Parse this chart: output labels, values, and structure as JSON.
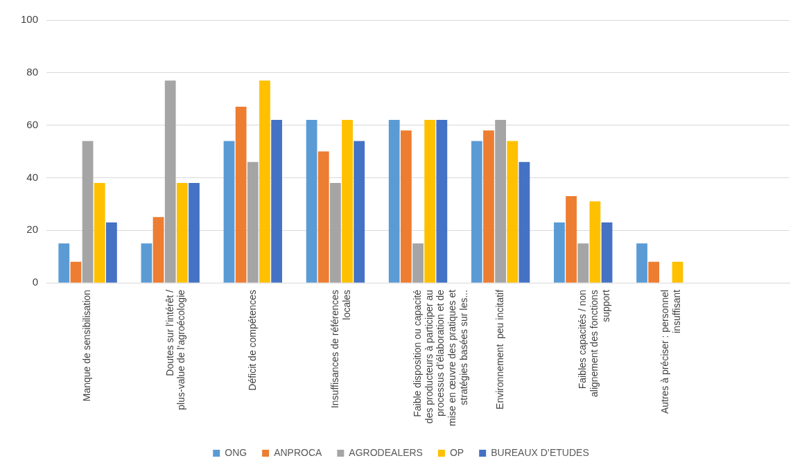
{
  "chart_data": {
    "type": "bar",
    "categories": [
      "Manque de sensibilisation",
      "Doutes sur l’intérêt / plus-value de l’agroécologie",
      "Déficit de compétences",
      "Insuffisances de références locales",
      "Faible disposition ou capacité des producteurs à participer au processus d’élaboration et de mise en œuvre des pratiques et stratégies basées sur les...",
      "Environnement  peu incitatif",
      "Faibles capacités / non alignement des fonctions support",
      "Autres à préciser : personnel insuffisant",
      null
    ],
    "series": [
      {
        "name": "ONG",
        "color": "#5b9bd5",
        "values": [
          15,
          15,
          54,
          62,
          62,
          54,
          23,
          15,
          null
        ]
      },
      {
        "name": "ANPROCA",
        "color": "#ed7d31",
        "values": [
          8,
          25,
          67,
          50,
          58,
          58,
          33,
          8,
          null
        ]
      },
      {
        "name": "AGRODEALERS",
        "color": "#a5a5a5",
        "values": [
          54,
          77,
          46,
          38,
          15,
          62,
          15,
          null,
          null
        ]
      },
      {
        "name": "OP",
        "color": "#ffc000",
        "values": [
          38,
          38,
          77,
          62,
          62,
          54,
          31,
          8,
          null
        ]
      },
      {
        "name": "BUREAUX D’ETUDES",
        "color": "#4472c4",
        "values": [
          23,
          38,
          62,
          54,
          62,
          46,
          23,
          null,
          null
        ]
      }
    ],
    "ylim": [
      0,
      100
    ],
    "yticks": [
      0,
      20,
      40,
      60,
      80,
      100
    ],
    "grid": "y",
    "legend": "bottom"
  }
}
